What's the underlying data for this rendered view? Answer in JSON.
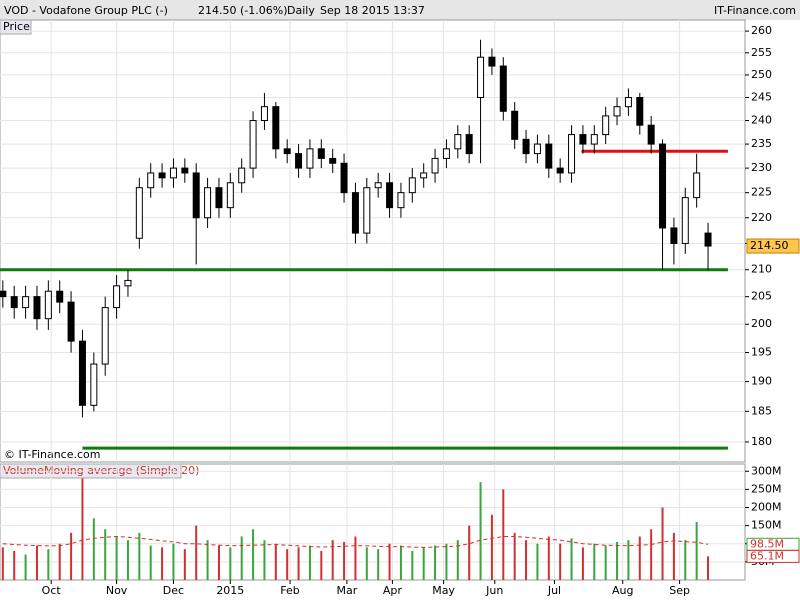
{
  "chart_data": {
    "type": "candlestick",
    "title": "VOD - Vodafone Group PLC (-)",
    "quote": "214.50 (-1.06%)",
    "interval": "Daily",
    "timestamp": "Sep 18 2015 13:37",
    "brand": "IT-Finance.com",
    "copyright": "© IT-Finance.com",
    "price_label": "Price",
    "volume_label": "Volume",
    "ma_label": "Moving average (Simple 20)",
    "log_scale": true,
    "grid": true,
    "up_color": "#ffffff",
    "down_color": "#000000",
    "xlim": [
      0,
      262
    ],
    "xticks": [
      {
        "value": 18,
        "label": "Oct"
      },
      {
        "value": 41,
        "label": "Nov"
      },
      {
        "value": 61,
        "label": "Dec"
      },
      {
        "value": 81,
        "label": "2015"
      },
      {
        "value": 102,
        "label": "Feb"
      },
      {
        "value": 122,
        "label": "Mar"
      },
      {
        "value": 138,
        "label": "Apr"
      },
      {
        "value": 156,
        "label": "May"
      },
      {
        "value": 174,
        "label": "Jun"
      },
      {
        "value": 195,
        "label": "Jul"
      },
      {
        "value": 219,
        "label": "Aug"
      },
      {
        "value": 239,
        "label": "Sep"
      }
    ],
    "ylim": [
      176.8,
      262.6
    ],
    "yticks": [
      180,
      185,
      190,
      195,
      200,
      205,
      210,
      215,
      220,
      225,
      230,
      235,
      240,
      245,
      250,
      255,
      260
    ],
    "x": [
      1,
      5,
      9,
      13,
      17,
      21,
      25,
      29,
      33,
      37,
      41,
      45,
      49,
      53,
      57,
      61,
      65,
      69,
      73,
      77,
      81,
      85,
      89,
      93,
      97,
      101,
      105,
      109,
      113,
      117,
      121,
      125,
      129,
      133,
      137,
      141,
      145,
      149,
      153,
      157,
      161,
      165,
      169,
      173,
      177,
      181,
      185,
      189,
      193,
      197,
      201,
      205,
      209,
      213,
      217,
      221,
      225,
      229,
      233,
      237,
      241,
      245,
      249
    ],
    "open": [
      206,
      205,
      203,
      205,
      201,
      206,
      204,
      197,
      186,
      193,
      203,
      207,
      216,
      226,
      229,
      228,
      230,
      229,
      220,
      226,
      222,
      227,
      230,
      240,
      243,
      234,
      233,
      230,
      234,
      232,
      231,
      225,
      217,
      226,
      227,
      222,
      225,
      228,
      229,
      232,
      234,
      237,
      245,
      254,
      252,
      242,
      236,
      233,
      235,
      230,
      229,
      237,
      235,
      237,
      241,
      243,
      245,
      239,
      235,
      218,
      215,
      224,
      217
    ],
    "high": [
      208,
      207,
      207,
      207,
      208,
      208,
      206,
      199,
      195,
      205,
      209,
      210,
      228,
      231,
      231,
      232,
      232,
      231,
      228,
      228,
      229,
      232,
      242,
      246,
      244,
      236,
      235,
      236,
      236,
      234,
      233,
      227,
      228,
      229,
      229,
      227,
      230,
      231,
      234,
      236,
      239,
      239,
      258,
      256,
      254,
      244,
      238,
      237,
      237,
      232,
      239,
      239,
      239,
      243,
      245,
      247,
      246,
      241,
      236,
      220,
      226,
      233,
      219
    ],
    "low": [
      203,
      201,
      201,
      199,
      199,
      202,
      195,
      184,
      185,
      191,
      201,
      205,
      214,
      224,
      226,
      226,
      227,
      211,
      218,
      220,
      220,
      225,
      228,
      238,
      232,
      231,
      228,
      228,
      230,
      229,
      223,
      215,
      215,
      224,
      220,
      220,
      223,
      226,
      227,
      230,
      232,
      231,
      231,
      250,
      240,
      234,
      231,
      231,
      228,
      227,
      227,
      233,
      233,
      235,
      239,
      241,
      237,
      233,
      210,
      211,
      213,
      222,
      210
    ],
    "close": [
      205,
      203,
      205,
      201,
      206,
      204,
      197,
      186,
      193,
      203,
      207,
      208,
      226,
      229,
      228,
      230,
      229,
      220,
      226,
      222,
      227,
      230,
      240,
      243,
      234,
      233,
      230,
      234,
      232,
      231,
      225,
      217,
      226,
      227,
      222,
      225,
      228,
      229,
      232,
      234,
      237,
      233,
      254,
      252,
      242,
      236,
      233,
      235,
      230,
      229,
      237,
      235,
      237,
      241,
      243,
      245,
      239,
      235,
      218,
      215,
      224,
      229,
      214.5
    ],
    "close_label": "214.50",
    "levels": [
      {
        "value": 210,
        "from": 0,
        "to": 256,
        "color": "#0a7d0a"
      },
      {
        "value": 179,
        "from": 29,
        "to": 256,
        "color": "#0a7d0a"
      },
      {
        "value": 233.5,
        "from": 204.5,
        "to": 256,
        "color": "#e01010"
      }
    ],
    "volume": {
      "ylim": [
        0,
        320000000
      ],
      "yticks": [
        {
          "value": 50000000,
          "label": "50M"
        },
        {
          "value": 100000000,
          "label": "100M"
        },
        {
          "value": 150000000,
          "label": "150M"
        },
        {
          "value": 200000000,
          "label": "200M"
        },
        {
          "value": 250000000,
          "label": "250M"
        },
        {
          "value": 300000000,
          "label": "300M"
        }
      ],
      "up_color": "#3aa53a",
      "down_color": "#d03030",
      "ma_color": "#d03030",
      "values": [
        90000000,
        80000000,
        70000000,
        95000000,
        85000000,
        100000000,
        130000000,
        280000000,
        170000000,
        140000000,
        120000000,
        110000000,
        130000000,
        95000000,
        90000000,
        100000000,
        85000000,
        150000000,
        110000000,
        95000000,
        90000000,
        120000000,
        140000000,
        110000000,
        100000000,
        85000000,
        90000000,
        95000000,
        80000000,
        110000000,
        105000000,
        120000000,
        90000000,
        85000000,
        100000000,
        95000000,
        80000000,
        90000000,
        95000000,
        100000000,
        110000000,
        150000000,
        270000000,
        180000000,
        250000000,
        130000000,
        110000000,
        100000000,
        120000000,
        100000000,
        115000000,
        90000000,
        100000000,
        95000000,
        105000000,
        110000000,
        120000000,
        140000000,
        200000000,
        130000000,
        110000000,
        160000000,
        65100000
      ],
      "last_label": "65.1M",
      "ma_values": [
        100000000,
        98000000,
        96000000,
        95000000,
        94000000,
        95000000,
        100000000,
        110000000,
        115000000,
        118000000,
        120000000,
        118000000,
        115000000,
        112000000,
        108000000,
        105000000,
        100000000,
        100000000,
        98000000,
        96000000,
        95000000,
        95000000,
        96000000,
        97000000,
        98000000,
        96000000,
        94000000,
        92000000,
        91000000,
        92000000,
        93000000,
        95000000,
        94000000,
        93000000,
        92000000,
        92000000,
        91000000,
        90000000,
        91000000,
        92000000,
        94000000,
        100000000,
        110000000,
        115000000,
        120000000,
        120000000,
        118000000,
        115000000,
        112000000,
        110000000,
        105000000,
        100000000,
        98000000,
        96000000,
        95000000,
        95000000,
        96000000,
        98000000,
        105000000,
        108000000,
        106000000,
        104000000,
        98500000
      ],
      "ma_last_label": "98.5M"
    }
  }
}
